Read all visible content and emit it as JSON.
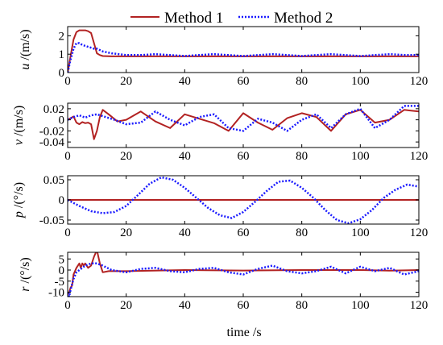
{
  "colors": {
    "method1": "#b22222",
    "method2": "#1a1aff"
  },
  "legend": {
    "position": "top-center",
    "entries": [
      {
        "label": "Method 1",
        "color": "#b22222",
        "style": "solid"
      },
      {
        "label": "Method 2",
        "color": "#1a1aff",
        "style": "dotted"
      }
    ]
  },
  "xlabel": "time /s",
  "chart_data": [
    {
      "type": "line",
      "ylabel_var": "u",
      "ylabel_unit": "/(m/s)",
      "xlim": [
        0,
        120
      ],
      "ylim": [
        0,
        2.5
      ],
      "xticks": [
        0,
        20,
        40,
        60,
        80,
        100,
        120
      ],
      "yticks": [
        0,
        1,
        2
      ],
      "ytick_labels": [
        "0",
        "1",
        "2"
      ],
      "grid": false,
      "series": [
        {
          "name": "Method 1",
          "x": [
            0,
            1,
            2,
            3,
            4,
            5,
            6,
            7,
            8,
            9,
            10,
            11,
            12,
            15,
            20,
            30,
            40,
            50,
            60,
            70,
            80,
            90,
            100,
            110,
            120
          ],
          "values": [
            0,
            0.9,
            1.8,
            2.2,
            2.3,
            2.3,
            2.3,
            2.25,
            2.15,
            1.6,
            1.05,
            0.95,
            0.9,
            0.88,
            0.88,
            0.88,
            0.88,
            0.88,
            0.88,
            0.88,
            0.88,
            0.88,
            0.88,
            0.88,
            0.88
          ]
        },
        {
          "name": "Method 2",
          "x": [
            0,
            1,
            2,
            3,
            4,
            5,
            6,
            7,
            8,
            9,
            10,
            12,
            15,
            20,
            25,
            30,
            35,
            40,
            45,
            50,
            55,
            60,
            65,
            70,
            75,
            80,
            85,
            90,
            95,
            100,
            105,
            110,
            115,
            120
          ],
          "values": [
            0,
            0.7,
            1.3,
            1.6,
            1.6,
            1.5,
            1.45,
            1.4,
            1.35,
            1.3,
            1.3,
            1.15,
            1.05,
            0.95,
            0.95,
            1.0,
            0.95,
            0.9,
            0.95,
            1.0,
            0.95,
            0.9,
            0.95,
            1.0,
            0.95,
            0.9,
            0.95,
            1.0,
            0.95,
            0.9,
            0.95,
            1.0,
            0.95,
            0.95
          ]
        }
      ]
    },
    {
      "type": "line",
      "ylabel_var": "v",
      "ylabel_unit": "/(m/s)",
      "xlim": [
        0,
        120
      ],
      "ylim": [
        -0.05,
        0.03
      ],
      "xticks": [
        0,
        20,
        40,
        60,
        80,
        100,
        120
      ],
      "yticks": [
        -0.04,
        -0.02,
        0,
        0.02
      ],
      "ytick_labels": [
        "-0.04",
        "-0.02",
        "0",
        "0.02"
      ],
      "grid": false,
      "series": [
        {
          "name": "Method 1",
          "x": [
            0,
            1,
            2,
            3,
            4,
            5,
            6,
            7,
            8,
            9,
            10,
            11,
            12,
            14,
            17,
            20,
            25,
            30,
            35,
            40,
            45,
            50,
            55,
            60,
            65,
            70,
            75,
            80,
            85,
            90,
            95,
            100,
            105,
            110,
            115,
            120
          ],
          "values": [
            0,
            0.003,
            0.006,
            -0.005,
            -0.008,
            -0.004,
            -0.006,
            -0.005,
            -0.008,
            -0.035,
            -0.02,
            0.005,
            0.018,
            0.01,
            -0.003,
            0.0,
            0.015,
            -0.003,
            -0.015,
            0.01,
            0.002,
            -0.006,
            -0.02,
            0.012,
            -0.005,
            -0.018,
            0.003,
            0.012,
            0.005,
            -0.02,
            0.01,
            0.018,
            -0.005,
            0.0,
            0.018,
            0.015
          ]
        },
        {
          "name": "Method 2",
          "x": [
            0,
            2,
            4,
            6,
            8,
            10,
            13,
            16,
            20,
            25,
            30,
            35,
            40,
            45,
            50,
            55,
            60,
            65,
            70,
            75,
            80,
            85,
            90,
            95,
            100,
            105,
            110,
            115,
            120
          ],
          "values": [
            0,
            0.005,
            0.008,
            0.004,
            0.008,
            0.01,
            0.005,
            0.0,
            -0.008,
            -0.005,
            0.015,
            0.0,
            -0.01,
            0.005,
            0.01,
            -0.015,
            -0.02,
            0.002,
            -0.005,
            -0.02,
            0.0,
            0.01,
            -0.015,
            0.01,
            0.02,
            -0.015,
            0.0,
            0.025,
            0.025
          ]
        }
      ]
    },
    {
      "type": "line",
      "ylabel_var": "p",
      "ylabel_unit": "/(°/s)",
      "xlim": [
        0,
        120
      ],
      "ylim": [
        -0.06,
        0.06
      ],
      "xticks": [
        0,
        20,
        40,
        60,
        80,
        100,
        120
      ],
      "yticks": [
        -0.05,
        0,
        0.05
      ],
      "ytick_labels": [
        "-0.05",
        "0",
        "0.05"
      ],
      "grid": false,
      "series": [
        {
          "name": "Method 1",
          "x": [
            0,
            120
          ],
          "values": [
            0,
            0
          ]
        },
        {
          "name": "Method 2",
          "x": [
            0,
            4,
            8,
            12,
            16,
            20,
            24,
            28,
            32,
            36,
            40,
            44,
            48,
            52,
            56,
            60,
            64,
            68,
            72,
            76,
            80,
            84,
            88,
            92,
            96,
            100,
            104,
            108,
            112,
            116,
            120
          ],
          "values": [
            0,
            -0.015,
            -0.028,
            -0.033,
            -0.03,
            -0.015,
            0.012,
            0.04,
            0.056,
            0.05,
            0.03,
            0.005,
            -0.02,
            -0.038,
            -0.045,
            -0.03,
            -0.005,
            0.022,
            0.045,
            0.048,
            0.03,
            0.005,
            -0.025,
            -0.05,
            -0.058,
            -0.048,
            -0.025,
            0.005,
            0.025,
            0.038,
            0.033
          ]
        }
      ]
    },
    {
      "type": "line",
      "ylabel_var": "r",
      "ylabel_unit": "/(°/s)",
      "xlim": [
        0,
        120
      ],
      "ylim": [
        -12,
        8
      ],
      "xticks": [
        0,
        20,
        40,
        60,
        80,
        100,
        120
      ],
      "yticks": [
        -10,
        -5,
        0,
        5
      ],
      "ytick_labels": [
        "-10",
        "-5",
        "0",
        "5"
      ],
      "grid": false,
      "series": [
        {
          "name": "Method 1",
          "x": [
            0,
            0.5,
            1,
            1.5,
            2,
            3,
            4,
            4.5,
            5,
            5.5,
            6,
            7,
            8,
            9,
            10,
            11,
            12,
            14,
            20,
            40,
            60,
            80,
            100,
            110,
            120
          ],
          "values": [
            -11,
            -10,
            -8,
            -7,
            -2,
            1,
            3,
            1,
            3,
            2,
            3,
            1,
            2,
            6,
            9,
            3,
            -1,
            -0.5,
            -0.5,
            0,
            -0.2,
            0,
            0,
            -0.3,
            0
          ]
        },
        {
          "name": "Method 2",
          "x": [
            0,
            0.5,
            1,
            2,
            3,
            4,
            5,
            6,
            8,
            10,
            12,
            15,
            20,
            25,
            30,
            35,
            40,
            45,
            50,
            55,
            60,
            65,
            70,
            75,
            80,
            85,
            90,
            95,
            100,
            105,
            110,
            115,
            120
          ],
          "values": [
            -10,
            -12,
            -9,
            -4,
            -1,
            0,
            1,
            2,
            3,
            3,
            2,
            0,
            -1,
            0.5,
            1,
            -0.5,
            -1,
            0.5,
            1,
            -1,
            -2,
            0.5,
            2,
            -0.5,
            -1.5,
            -0.5,
            1.5,
            -1.5,
            1.5,
            -0.5,
            1,
            -2,
            -0.5
          ]
        }
      ]
    }
  ]
}
